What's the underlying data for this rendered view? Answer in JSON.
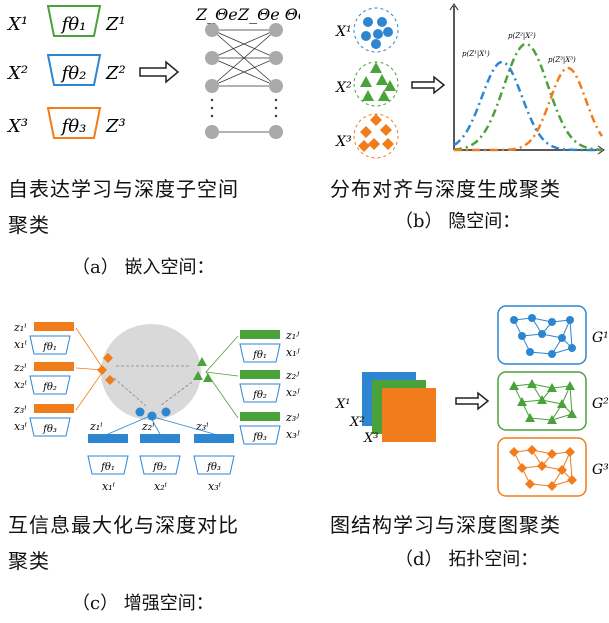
{
  "panels": {
    "a": {
      "inputs": [
        "X¹",
        "X²",
        "X³"
      ],
      "encoders": [
        "fθ₁",
        "fθ₂",
        "fθ₃"
      ],
      "outputs": [
        "Z¹",
        "Z²",
        "Z³"
      ],
      "net_left_label": "Z_Θe",
      "net_right_label": "Z_Θe Θe S",
      "caption_line1": "自表达学习与深度子空间",
      "caption_line2": "聚类",
      "sub": "（a） 嵌入空间："
    },
    "b": {
      "inputs": [
        "X¹",
        "X²",
        "X³"
      ],
      "curve_labels": [
        "p(Z¹|X¹)",
        "p(Z²|X²)",
        "p(Z³|X³)"
      ],
      "caption": "分布对齐与深度生成聚类",
      "sub": "（b） 隐空间："
    },
    "c": {
      "left_z": [
        "z₁ⁱ",
        "z₂ⁱ",
        "z₃ⁱ"
      ],
      "left_x": [
        "x₁ⁱ",
        "x₂ⁱ",
        "x₃ⁱ"
      ],
      "right_z": [
        "z₁ʲ",
        "z₂ʲ",
        "z₃ʲ"
      ],
      "right_x": [
        "x₁ʲ",
        "x₂ʲ",
        "x₃ʲ"
      ],
      "bottom_z": [
        "z₁ⁱ",
        "z₂ⁱ",
        "z₃ⁱ"
      ],
      "bottom_x": [
        "x₁ⁱ",
        "x₂ⁱ",
        "x₃ⁱ"
      ],
      "encoders": [
        "fθ₁",
        "fθ₂",
        "fθ₃"
      ],
      "caption_line1": "互信息最大化与深度对比",
      "caption_line2": "聚类",
      "sub": "（c） 增强空间："
    },
    "d": {
      "inputs": [
        "X¹",
        "X²",
        "X³"
      ],
      "graph_labels": [
        "G¹",
        "G²",
        "G³"
      ],
      "caption": "图结构学习与深度图聚类",
      "sub": "（d） 拓扑空间："
    }
  },
  "colors": {
    "blue": "#2e86d1",
    "green": "#4aa23a",
    "orange": "#f07c1b",
    "gray": "#d9d9d9"
  }
}
